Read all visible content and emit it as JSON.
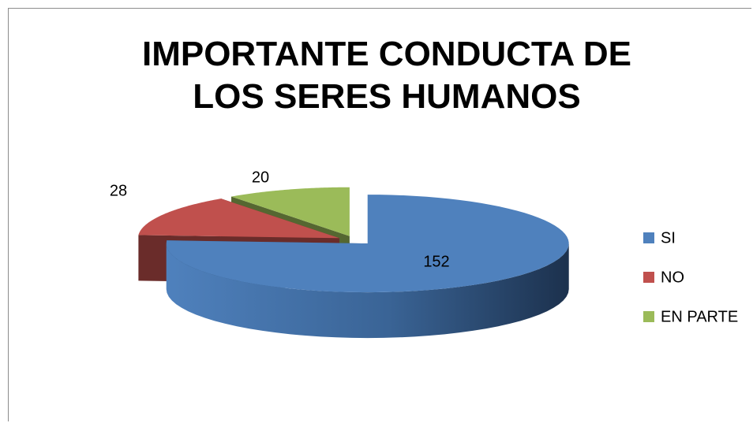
{
  "chart_data": {
    "type": "pie",
    "title": "IMPORTANTE CONDUCTA DE LOS SERES HUMANOS",
    "categories": [
      "SI",
      "NO",
      "EN PARTE"
    ],
    "values": [
      152,
      28,
      20
    ],
    "colors": [
      "#4f81bd",
      "#c0504d",
      "#9bbb59"
    ],
    "legend": "right"
  }
}
